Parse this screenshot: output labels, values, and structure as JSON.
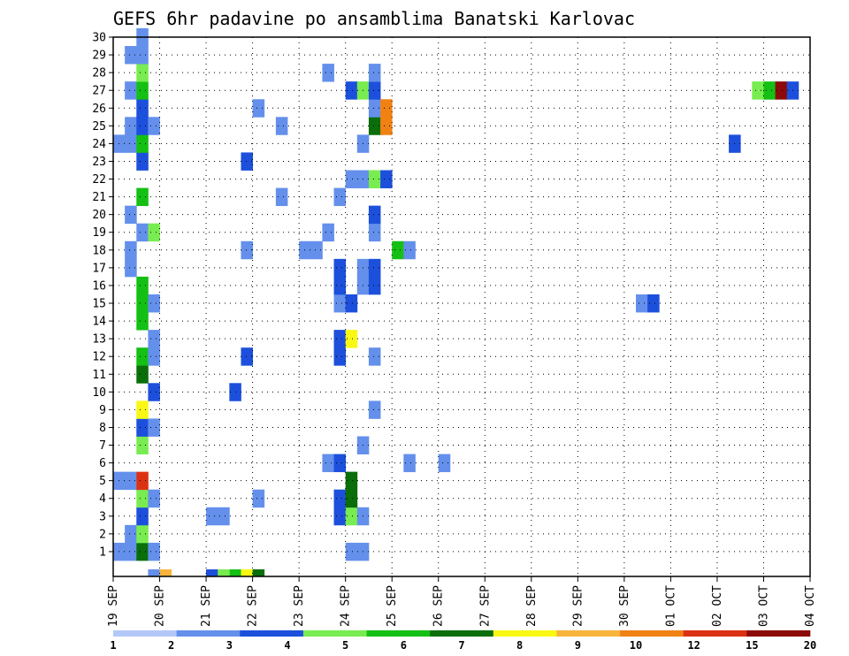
{
  "chart_data": {
    "type": "heatmap",
    "title": "GEFS 6hr padavine po ansamblima Banatski Karlovac",
    "x_ticks": [
      "19 SEP",
      "20 SEP",
      "21 SEP",
      "22 SEP",
      "23 SEP",
      "24 SEP",
      "25 SEP",
      "26 SEP",
      "27 SEP",
      "28 SEP",
      "29 SEP",
      "30 SEP",
      "01 OCT",
      "02 OCT",
      "03 OCT",
      "04 OCT"
    ],
    "y_ticks": [
      "1",
      "2",
      "3",
      "4",
      "5",
      "6",
      "7",
      "8",
      "9",
      "10",
      "11",
      "12",
      "13",
      "14",
      "15",
      "16",
      "17",
      "18",
      "19",
      "20",
      "21",
      "22",
      "23",
      "24",
      "25",
      "26",
      "27",
      "28",
      "29",
      "30"
    ],
    "x_range": [
      0,
      60
    ],
    "y_range": [
      0,
      30
    ],
    "grid": "dotted",
    "colorbar": {
      "labels": [
        "1",
        "2",
        "3",
        "4",
        "5",
        "6",
        "7",
        "8",
        "9",
        "10",
        "12",
        "15",
        "20"
      ],
      "colors": [
        "#b4c8f8",
        "#6490ec",
        "#1c50dc",
        "#78ec50",
        "#14c014",
        "#0a6e0a",
        "#f8f814",
        "#f8b43c",
        "#f08214",
        "#dc3214",
        "#8c0a0a"
      ]
    },
    "cells": [
      [
        3,
        0,
        1
      ],
      [
        4,
        0,
        7
      ],
      [
        8,
        0,
        2
      ],
      [
        10,
        0,
        4
      ],
      [
        11,
        0,
        6
      ],
      [
        12,
        0,
        5
      ],
      [
        8,
        0,
        2
      ],
      [
        9,
        0,
        3
      ],
      [
        0,
        1,
        1
      ],
      [
        1,
        1,
        1
      ],
      [
        2,
        1,
        5
      ],
      [
        3,
        1,
        1
      ],
      [
        20,
        1,
        1
      ],
      [
        21,
        1,
        1
      ],
      [
        1,
        2,
        1
      ],
      [
        2,
        2,
        3
      ],
      [
        2,
        3,
        2
      ],
      [
        8,
        3,
        1
      ],
      [
        9,
        3,
        1
      ],
      [
        19,
        3,
        2
      ],
      [
        20,
        3,
        3
      ],
      [
        21,
        3,
        1
      ],
      [
        2,
        4,
        3
      ],
      [
        3,
        4,
        1
      ],
      [
        12,
        4,
        1
      ],
      [
        19,
        4,
        2
      ],
      [
        20,
        4,
        5
      ],
      [
        0,
        5,
        1
      ],
      [
        1,
        5,
        1
      ],
      [
        2,
        5,
        9
      ],
      [
        20,
        5,
        5
      ],
      [
        18,
        6,
        1
      ],
      [
        19,
        6,
        2
      ],
      [
        25,
        6,
        1
      ],
      [
        28,
        6,
        1
      ],
      [
        2,
        7,
        3
      ],
      [
        21,
        7,
        1
      ],
      [
        2,
        8,
        2
      ],
      [
        3,
        8,
        1
      ],
      [
        2,
        9,
        6
      ],
      [
        22,
        9,
        1
      ],
      [
        3,
        10,
        2
      ],
      [
        10,
        10,
        2
      ],
      [
        2,
        11,
        5
      ],
      [
        2,
        12,
        4
      ],
      [
        3,
        12,
        1
      ],
      [
        11,
        12,
        2
      ],
      [
        19,
        12,
        2
      ],
      [
        22,
        12,
        1
      ],
      [
        3,
        13,
        1
      ],
      [
        19,
        13,
        2
      ],
      [
        20,
        13,
        6
      ],
      [
        2,
        14,
        4
      ],
      [
        2,
        15,
        4
      ],
      [
        3,
        15,
        1
      ],
      [
        19,
        15,
        1
      ],
      [
        20,
        15,
        2
      ],
      [
        45,
        15,
        1
      ],
      [
        46,
        15,
        2
      ],
      [
        2,
        16,
        4
      ],
      [
        19,
        16,
        2
      ],
      [
        21,
        16,
        1
      ],
      [
        22,
        16,
        2
      ],
      [
        1,
        17,
        1
      ],
      [
        19,
        17,
        2
      ],
      [
        21,
        17,
        1
      ],
      [
        22,
        17,
        2
      ],
      [
        1,
        18,
        1
      ],
      [
        11,
        18,
        1
      ],
      [
        16,
        18,
        1
      ],
      [
        17,
        18,
        1
      ],
      [
        24,
        18,
        4
      ],
      [
        25,
        18,
        1
      ],
      [
        2,
        19,
        1
      ],
      [
        3,
        19,
        3
      ],
      [
        18,
        19,
        1
      ],
      [
        22,
        19,
        1
      ],
      [
        1,
        20,
        1
      ],
      [
        22,
        20,
        2
      ],
      [
        2,
        21,
        4
      ],
      [
        14,
        21,
        1
      ],
      [
        19,
        21,
        1
      ],
      [
        20,
        22,
        1
      ],
      [
        21,
        22,
        1
      ],
      [
        22,
        22,
        3
      ],
      [
        23,
        22,
        2
      ],
      [
        2,
        23,
        2
      ],
      [
        11,
        23,
        2
      ],
      [
        0,
        24,
        1
      ],
      [
        1,
        24,
        1
      ],
      [
        2,
        24,
        4
      ],
      [
        21,
        24,
        1
      ],
      [
        53,
        24,
        2
      ],
      [
        1,
        25,
        1
      ],
      [
        2,
        25,
        2
      ],
      [
        3,
        25,
        1
      ],
      [
        14,
        25,
        1
      ],
      [
        22,
        25,
        5
      ],
      [
        23,
        25,
        8
      ],
      [
        2,
        26,
        2
      ],
      [
        12,
        26,
        1
      ],
      [
        22,
        26,
        1
      ],
      [
        23,
        26,
        8
      ],
      [
        1,
        27,
        1
      ],
      [
        2,
        27,
        4
      ],
      [
        20,
        27,
        2
      ],
      [
        21,
        27,
        3
      ],
      [
        22,
        27,
        2
      ],
      [
        55,
        27,
        3
      ],
      [
        56,
        27,
        4
      ],
      [
        57,
        27,
        10
      ],
      [
        58,
        27,
        2
      ],
      [
        2,
        28,
        3
      ],
      [
        18,
        28,
        1
      ],
      [
        22,
        28,
        1
      ],
      [
        1,
        29,
        1
      ],
      [
        2,
        29,
        1
      ],
      [
        2,
        30,
        1
      ]
    ]
  }
}
